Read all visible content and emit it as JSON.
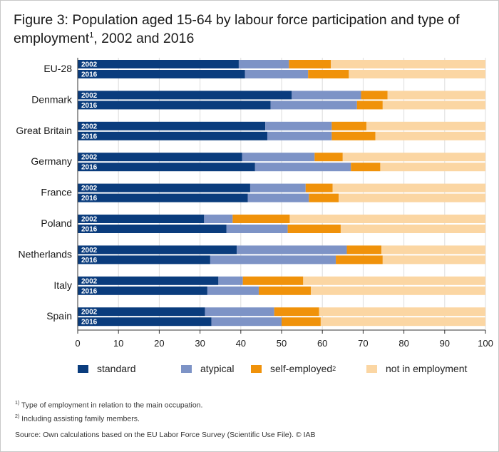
{
  "title_main": "Figure 3: Population aged 15-64 by labour force participation and type of employment",
  "title_sup": "1",
  "title_tail": ", 2002 and 2016",
  "colors": {
    "standard": "#0a3c7d",
    "atypical": "#7d93c6",
    "self-employed": "#f0920a",
    "not in employment": "#fbd6a3",
    "axis": "#333333",
    "grid": "#dddddd"
  },
  "legend": [
    {
      "label": "standard",
      "sup": "",
      "key": "standard"
    },
    {
      "label": "atypical",
      "sup": "",
      "key": "atypical"
    },
    {
      "label": "self-employed",
      "sup": "2",
      "key": "self-employed"
    },
    {
      "label": "not in employment",
      "sup": "",
      "key": "not in employment"
    }
  ],
  "footnotes": [
    {
      "sup": "1)",
      "text": "Type of employment in relation to the main occupation."
    },
    {
      "sup": "2)",
      "text": "Including assisting family members."
    }
  ],
  "source": "Source: Own calculations based on the EU Labor Force Survey (Scientific Use File). © IAB",
  "chart_data": {
    "type": "bar",
    "orientation": "horizontal",
    "stacked": true,
    "xlim": [
      0,
      100
    ],
    "xticks": [
      0,
      10,
      20,
      30,
      40,
      50,
      60,
      70,
      80,
      90,
      100
    ],
    "grid": true,
    "legend_position": "bottom",
    "series_names": [
      "standard",
      "atypical",
      "self-employed",
      "not in employment"
    ],
    "groups": [
      {
        "category": "EU-28",
        "bars": [
          {
            "year": "2002",
            "values": [
              39.5,
              12.3,
              10.3,
              37.9
            ]
          },
          {
            "year": "2016",
            "values": [
              41.0,
              15.5,
              10.0,
              33.5
            ]
          }
        ]
      },
      {
        "category": "Denmark",
        "bars": [
          {
            "year": "2002",
            "values": [
              52.5,
              17.0,
              6.5,
              24.0
            ]
          },
          {
            "year": "2016",
            "values": [
              47.3,
              21.2,
              6.3,
              25.2
            ]
          }
        ]
      },
      {
        "category": "Great Britain",
        "bars": [
          {
            "year": "2002",
            "values": [
              46.0,
              16.3,
              8.5,
              29.2
            ]
          },
          {
            "year": "2016",
            "values": [
              46.5,
              15.8,
              10.7,
              27.0
            ]
          }
        ]
      },
      {
        "category": "Germany",
        "bars": [
          {
            "year": "2002",
            "values": [
              40.3,
              17.8,
              6.9,
              35.0
            ]
          },
          {
            "year": "2016",
            "values": [
              43.5,
              23.5,
              7.2,
              25.8
            ]
          }
        ]
      },
      {
        "category": "France",
        "bars": [
          {
            "year": "2002",
            "values": [
              42.3,
              13.6,
              6.6,
              37.5
            ]
          },
          {
            "year": "2016",
            "values": [
              41.7,
              15.0,
              7.3,
              36.0
            ]
          }
        ]
      },
      {
        "category": "Poland",
        "bars": [
          {
            "year": "2002",
            "values": [
              31.0,
              7.0,
              14.0,
              48.0
            ]
          },
          {
            "year": "2016",
            "values": [
              36.5,
              15.0,
              13.0,
              35.5
            ]
          }
        ]
      },
      {
        "category": "Netherlands",
        "bars": [
          {
            "year": "2002",
            "values": [
              39.0,
              27.0,
              8.5,
              25.5
            ]
          },
          {
            "year": "2016",
            "values": [
              32.5,
              30.8,
              11.5,
              25.2
            ]
          }
        ]
      },
      {
        "category": "Italy",
        "bars": [
          {
            "year": "2002",
            "values": [
              34.5,
              6.0,
              14.8,
              44.7
            ]
          },
          {
            "year": "2016",
            "values": [
              31.8,
              12.6,
              12.8,
              42.8
            ]
          }
        ]
      },
      {
        "category": "Spain",
        "bars": [
          {
            "year": "2002",
            "values": [
              31.2,
              17.0,
              11.0,
              40.8
            ]
          },
          {
            "year": "2016",
            "values": [
              32.8,
              17.2,
              9.6,
              40.4
            ]
          }
        ]
      }
    ]
  }
}
